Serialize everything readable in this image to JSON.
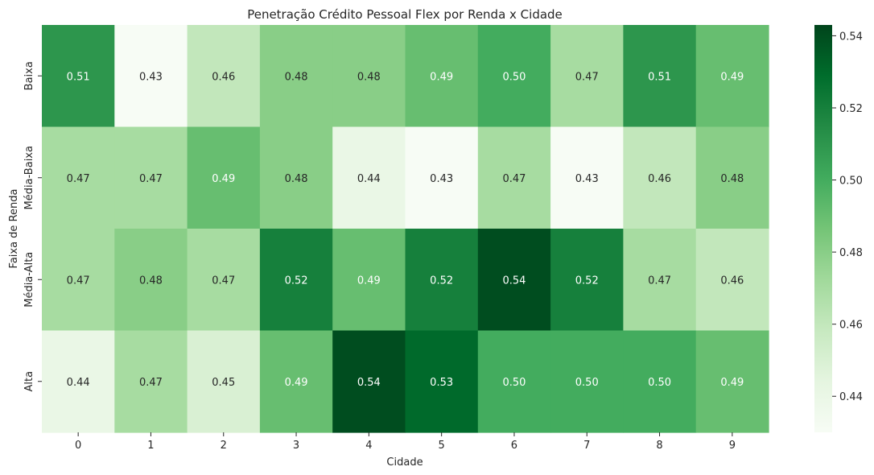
{
  "chart_data": {
    "type": "heatmap",
    "title": "Penetração Crédito Pessoal Flex por Renda x Cidade",
    "xlabel": "Cidade",
    "ylabel": "Faixa de Renda",
    "x_categories": [
      "0",
      "1",
      "2",
      "3",
      "4",
      "5",
      "6",
      "7",
      "8",
      "9"
    ],
    "y_categories": [
      "Baixa",
      "Média-Baixa",
      "Média-Alta",
      "Alta"
    ],
    "values": [
      [
        0.51,
        0.43,
        0.46,
        0.48,
        0.48,
        0.49,
        0.5,
        0.47,
        0.51,
        0.49
      ],
      [
        0.47,
        0.47,
        0.49,
        0.48,
        0.44,
        0.43,
        0.47,
        0.43,
        0.46,
        0.48
      ],
      [
        0.47,
        0.48,
        0.47,
        0.52,
        0.49,
        0.52,
        0.54,
        0.52,
        0.47,
        0.46
      ],
      [
        0.44,
        0.47,
        0.45,
        0.49,
        0.54,
        0.53,
        0.5,
        0.5,
        0.5,
        0.49
      ]
    ],
    "annotations": [
      [
        "0.51",
        "0.43",
        "0.46",
        "0.48",
        "0.48",
        "0.49",
        "0.50",
        "0.47",
        "0.51",
        "0.49"
      ],
      [
        "0.47",
        "0.47",
        "0.49",
        "0.48",
        "0.44",
        "0.43",
        "0.47",
        "0.43",
        "0.46",
        "0.48"
      ],
      [
        "0.47",
        "0.48",
        "0.47",
        "0.52",
        "0.49",
        "0.52",
        "0.54",
        "0.52",
        "0.47",
        "0.46"
      ],
      [
        "0.44",
        "0.47",
        "0.45",
        "0.49",
        "0.54",
        "0.53",
        "0.50",
        "0.50",
        "0.50",
        "0.49"
      ]
    ],
    "colormap": "Greens",
    "color_range": [
      0.43,
      0.543
    ],
    "colorbar_ticks": [
      "0.44",
      "0.46",
      "0.48",
      "0.50",
      "0.52",
      "0.54"
    ],
    "grid": false,
    "colors": {
      "low": "#f7fcf5",
      "high": "#00441b",
      "text_dark": "#262626",
      "text_light": "#ffffff"
    }
  }
}
